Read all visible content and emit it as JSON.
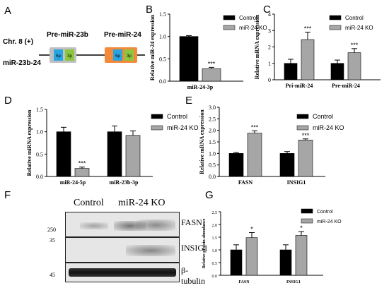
{
  "panels": {
    "A": {
      "label": "A",
      "chr": "Chr. 8 (+)",
      "gene": "miR-23b-24",
      "pre1": "Pre-miR-23b",
      "pre2": "Pre-miR-24",
      "arm5": "5p",
      "arm3": "3p"
    },
    "B": {
      "label": "B"
    },
    "C": {
      "label": "C"
    },
    "D": {
      "label": "D"
    },
    "E": {
      "label": "E"
    },
    "F": {
      "label": "F",
      "header_control": "Control",
      "header_ko": "miR-24 KO",
      "rows": [
        {
          "marker": "250",
          "name": "FASN"
        },
        {
          "marker": "35",
          "name": "INSIG1"
        },
        {
          "marker": "45",
          "name": "β-tubulin"
        }
      ]
    },
    "G": {
      "label": "G"
    }
  },
  "colors": {
    "control": "#000000",
    "ko": "#a6a6a6",
    "pre_miR": "#c0c0c0",
    "pre_miR24": "#f28a3a",
    "arm5p": "#2aa5e0",
    "arm3p": "#8cc63f"
  },
  "chart_data": [
    {
      "id": "B",
      "type": "bar",
      "ylabel": "Relative miR-24 expression",
      "ylim": [
        0,
        1.5
      ],
      "yticks": [
        "0.0",
        "0.5",
        "1.0",
        "1.5"
      ],
      "tickvals": [
        0,
        0.5,
        1.0,
        1.5
      ],
      "categories": [
        "miR-24-3p"
      ],
      "series": [
        {
          "name": "Control",
          "values": [
            1.0
          ],
          "errors": [
            0.02
          ],
          "sig": [
            ""
          ]
        },
        {
          "name": "miR-24 KO",
          "values": [
            0.28
          ],
          "errors": [
            0.03
          ],
          "sig": [
            "***"
          ]
        }
      ]
    },
    {
      "id": "C",
      "type": "bar",
      "ylabel": "Relative mRNA expression",
      "ylim": [
        0,
        4
      ],
      "yticks": [
        "0",
        "1",
        "2",
        "3",
        "4"
      ],
      "tickvals": [
        0,
        1,
        2,
        3,
        4
      ],
      "categories": [
        "Pri-miR-24",
        "Pre-miR-24"
      ],
      "series": [
        {
          "name": "Control",
          "values": [
            1.0,
            1.0
          ],
          "errors": [
            0.25,
            0.2
          ],
          "sig": [
            "",
            ""
          ]
        },
        {
          "name": "miR-24 KO",
          "values": [
            2.45,
            1.65
          ],
          "errors": [
            0.45,
            0.25
          ],
          "sig": [
            "***",
            "***"
          ]
        }
      ]
    },
    {
      "id": "D",
      "type": "bar",
      "ylabel": "Relative miRNA expression",
      "ylim": [
        0,
        1.5
      ],
      "yticks": [
        "0.0",
        "0.5",
        "1.0",
        "1.5"
      ],
      "tickvals": [
        0,
        0.5,
        1.0,
        1.5
      ],
      "categories": [
        "miR-24-5p",
        "miR-23b-3p"
      ],
      "series": [
        {
          "name": "Control",
          "values": [
            1.0,
            1.0
          ],
          "errors": [
            0.1,
            0.13
          ],
          "sig": [
            "",
            ""
          ]
        },
        {
          "name": "miR-24 KO",
          "values": [
            0.18,
            0.92
          ],
          "errors": [
            0.03,
            0.1
          ],
          "sig": [
            "***",
            ""
          ]
        }
      ]
    },
    {
      "id": "E",
      "type": "bar",
      "ylabel": "Relative mRNA expression",
      "ylim": [
        0,
        3.0
      ],
      "yticks": [
        "0.0",
        "0.5",
        "1.0",
        "1.5",
        "2.0",
        "2.5",
        "3.0"
      ],
      "tickvals": [
        0,
        0.5,
        1.0,
        1.5,
        2.0,
        2.5,
        3.0
      ],
      "categories": [
        "FASN",
        "INSIG1"
      ],
      "series": [
        {
          "name": "Control",
          "values": [
            1.0,
            1.0
          ],
          "errors": [
            0.04,
            0.08
          ],
          "sig": [
            "",
            ""
          ]
        },
        {
          "name": "miR-24 KO",
          "values": [
            1.88,
            1.58
          ],
          "errors": [
            0.1,
            0.05
          ],
          "sig": [
            "***",
            "***"
          ]
        }
      ]
    },
    {
      "id": "G",
      "type": "bar",
      "ylabel": "Relative protein abundance",
      "ylim": [
        0,
        2.5
      ],
      "yticks": [
        "0.0",
        "0.5",
        "1.0",
        "1.5",
        "2.0",
        "2.5"
      ],
      "tickvals": [
        0,
        0.5,
        1.0,
        1.5,
        2.0,
        2.5
      ],
      "categories": [
        "FASN",
        "INSIG1"
      ],
      "series": [
        {
          "name": "Control",
          "values": [
            1.0,
            1.0
          ],
          "errors": [
            0.2,
            0.2
          ],
          "sig": [
            "",
            ""
          ]
        },
        {
          "name": "miR-24 KO",
          "values": [
            1.48,
            1.57
          ],
          "errors": [
            0.2,
            0.15
          ],
          "sig": [
            "*",
            "*"
          ]
        }
      ]
    }
  ]
}
